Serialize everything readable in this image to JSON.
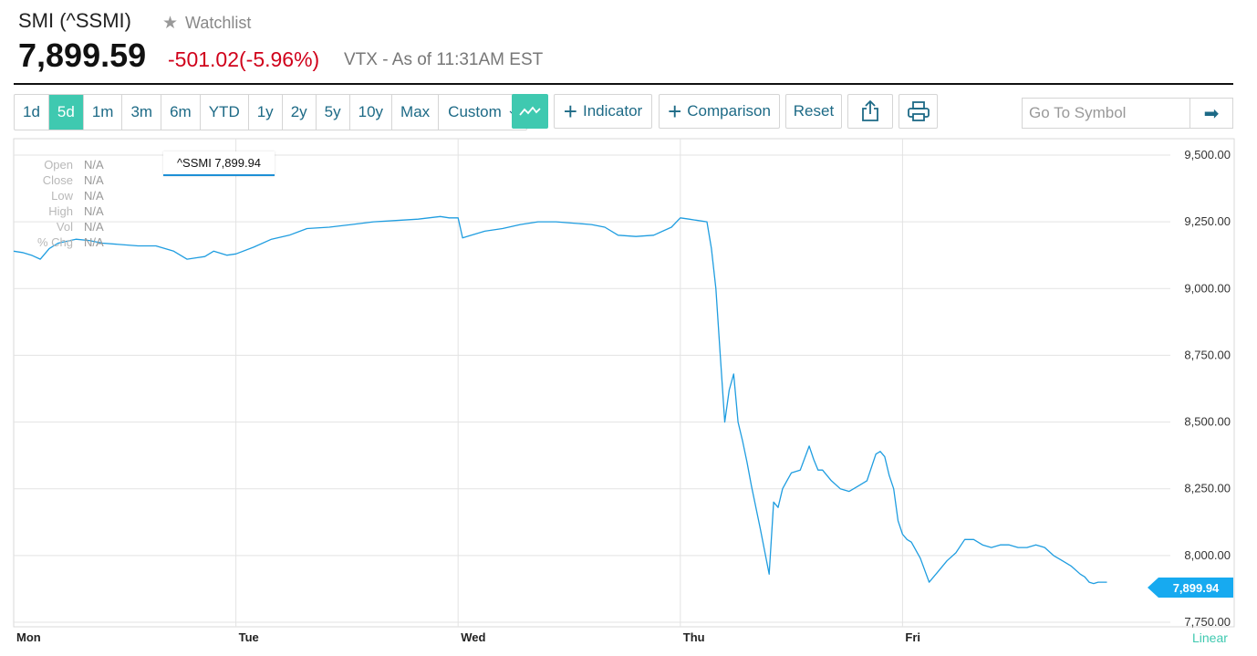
{
  "header": {
    "title": "SMI (^SSMI)",
    "watchlist_label": "Watchlist",
    "price": "7,899.59",
    "change": "-501.02",
    "change_pct": "(-5.96%)",
    "source": "VTX - As of 11:31AM EST"
  },
  "toolbar": {
    "ranges": [
      "1d",
      "5d",
      "1m",
      "3m",
      "6m",
      "YTD",
      "1y",
      "2y",
      "5y",
      "10y",
      "Max",
      "Custom"
    ],
    "active_range": "5d",
    "indicator_label": "Indicator",
    "comparison_label": "Comparison",
    "reset_label": "Reset",
    "goto_placeholder": "Go To Symbol"
  },
  "ohlc": {
    "labels": [
      "Open",
      "Close",
      "Low",
      "High",
      "Vol",
      "% Chg"
    ],
    "values": [
      "N/A",
      "N/A",
      "N/A",
      "N/A",
      "N/A",
      "N/A"
    ]
  },
  "tooltip": "^SSMI 7,899.94",
  "last_label": "7,899.94",
  "scale_label": "Linear",
  "colors": {
    "line": "#1f9de0",
    "accent": "#3fc9b0",
    "down": "#d0021b",
    "link": "#1d6a86"
  },
  "chart_data": {
    "type": "line",
    "xlabel": "",
    "ylabel": "",
    "ylim": [
      7750,
      9500
    ],
    "yticks": [
      "9,500.00",
      "9,250.00",
      "9,000.00",
      "8,750.00",
      "8,500.00",
      "8,250.00",
      "8,000.00",
      "7,750.00"
    ],
    "ytick_values": [
      9500,
      9250,
      9000,
      8750,
      8500,
      8250,
      8000,
      7750
    ],
    "xticks": [
      "Mon",
      "Tue",
      "Wed",
      "Thu",
      "Fri"
    ],
    "xlim": [
      0,
      5
    ],
    "grid": true,
    "series": [
      {
        "x": [
          0,
          0.04,
          0.08,
          0.12,
          0.16,
          0.2,
          0.28,
          0.34,
          0.4,
          0.48,
          0.56,
          0.64,
          0.72,
          0.78,
          0.82,
          0.86,
          0.9,
          0.96,
          1.0,
          1.08,
          1.16,
          1.24,
          1.32,
          1.42,
          1.52,
          1.62,
          1.72,
          1.82,
          1.92,
          1.96,
          2.0,
          2.02,
          2.06,
          2.12,
          2.2,
          2.28,
          2.36,
          2.44,
          2.52,
          2.6,
          2.66,
          2.72,
          2.8,
          2.88,
          2.96,
          3.0,
          3.04,
          3.08,
          3.12,
          3.14,
          3.16,
          3.18,
          3.2,
          3.22,
          3.24,
          3.26,
          3.28,
          3.3,
          3.32,
          3.36,
          3.4,
          3.42,
          3.44,
          3.46,
          3.48,
          3.5,
          3.54,
          3.58,
          3.6,
          3.62,
          3.64,
          3.68,
          3.72,
          3.76,
          3.8,
          3.84,
          3.88,
          3.9,
          3.92,
          3.94,
          3.96,
          3.98,
          4.0,
          4.02,
          4.04,
          4.08,
          4.12,
          4.16,
          4.2,
          4.24,
          4.28,
          4.32,
          4.36,
          4.4,
          4.44,
          4.48,
          4.52,
          4.56,
          4.6,
          4.64,
          4.68,
          4.72,
          4.76,
          4.8,
          4.82,
          4.84,
          4.86,
          4.88,
          4.9,
          4.92
        ],
        "y": [
          9140,
          9135,
          9125,
          9110,
          9150,
          9170,
          9185,
          9180,
          9170,
          9165,
          9160,
          9160,
          9140,
          9110,
          9115,
          9120,
          9140,
          9125,
          9130,
          9155,
          9185,
          9200,
          9225,
          9230,
          9240,
          9250,
          9255,
          9260,
          9270,
          9265,
          9265,
          9190,
          9200,
          9215,
          9225,
          9240,
          9250,
          9250,
          9245,
          9240,
          9230,
          9200,
          9195,
          9200,
          9230,
          9265,
          9260,
          9255,
          9250,
          9150,
          9000,
          8750,
          8500,
          8620,
          8680,
          8500,
          8430,
          8350,
          8260,
          8100,
          7930,
          8200,
          8180,
          8250,
          8280,
          8310,
          8320,
          8410,
          8360,
          8320,
          8320,
          8280,
          8250,
          8240,
          8260,
          8280,
          8380,
          8390,
          8370,
          8300,
          8250,
          8130,
          8080,
          8060,
          8050,
          7990,
          7900,
          7940,
          7980,
          8010,
          8060,
          8060,
          8040,
          8030,
          8040,
          8040,
          8030,
          8030,
          8040,
          8030,
          8000,
          7980,
          7960,
          7930,
          7920,
          7900,
          7895,
          7900,
          7900,
          7900
        ],
        "last": 7899.94
      }
    ]
  }
}
